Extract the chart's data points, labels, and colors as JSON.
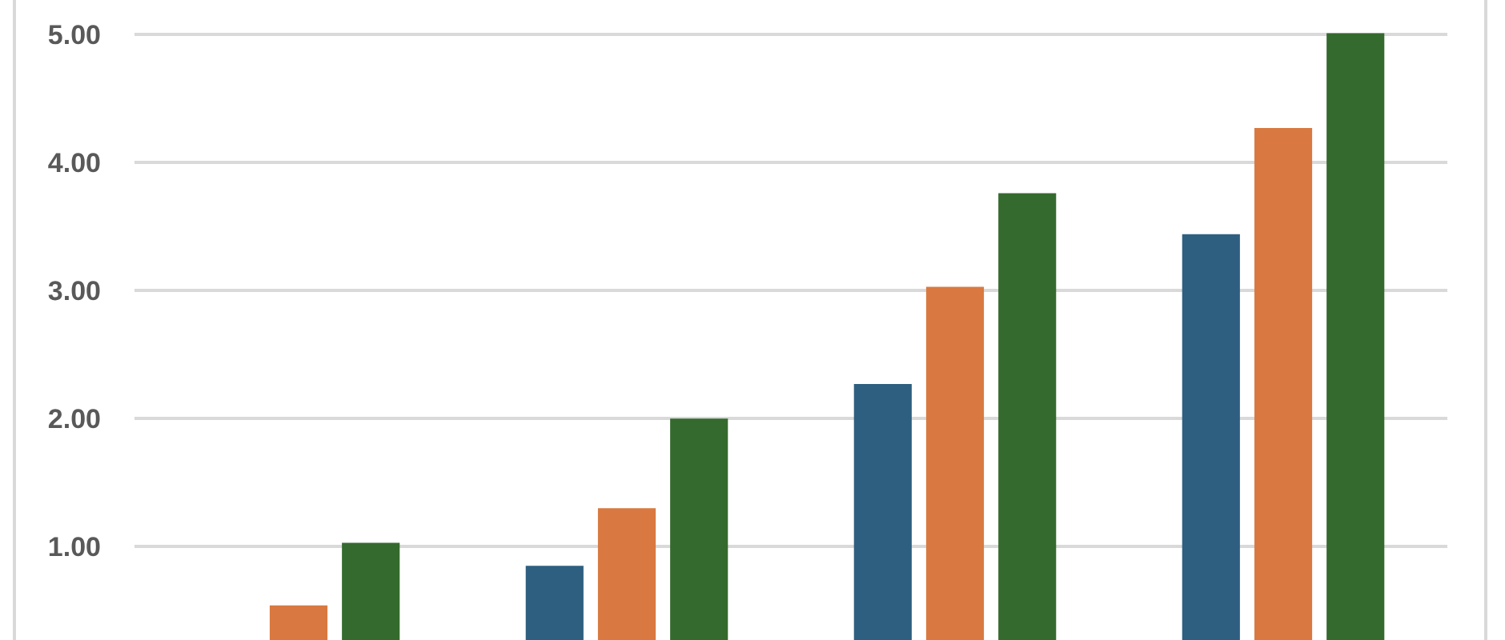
{
  "chart_data": {
    "type": "bar",
    "categories": [
      null,
      null,
      null,
      null
    ],
    "series": [
      {
        "color": "#2e5f80",
        "values": [
          null,
          0.85,
          2.27,
          3.44
        ]
      },
      {
        "color": "#d97941",
        "values": [
          0.54,
          1.3,
          3.03,
          4.27
        ]
      },
      {
        "color": "#356a2e",
        "values": [
          1.03,
          2.0,
          3.76,
          5.01
        ]
      }
    ],
    "ylim": [
      0.27,
      5.27
    ],
    "yticks": [
      {
        "value": 1,
        "label": "1.00"
      },
      {
        "value": 2,
        "label": "2.00"
      },
      {
        "value": 3,
        "label": "3.00"
      },
      {
        "value": 4,
        "label": "4.00"
      },
      {
        "value": 5,
        "label": "5.00"
      }
    ],
    "grid": "y",
    "tick_labels": "y"
  }
}
